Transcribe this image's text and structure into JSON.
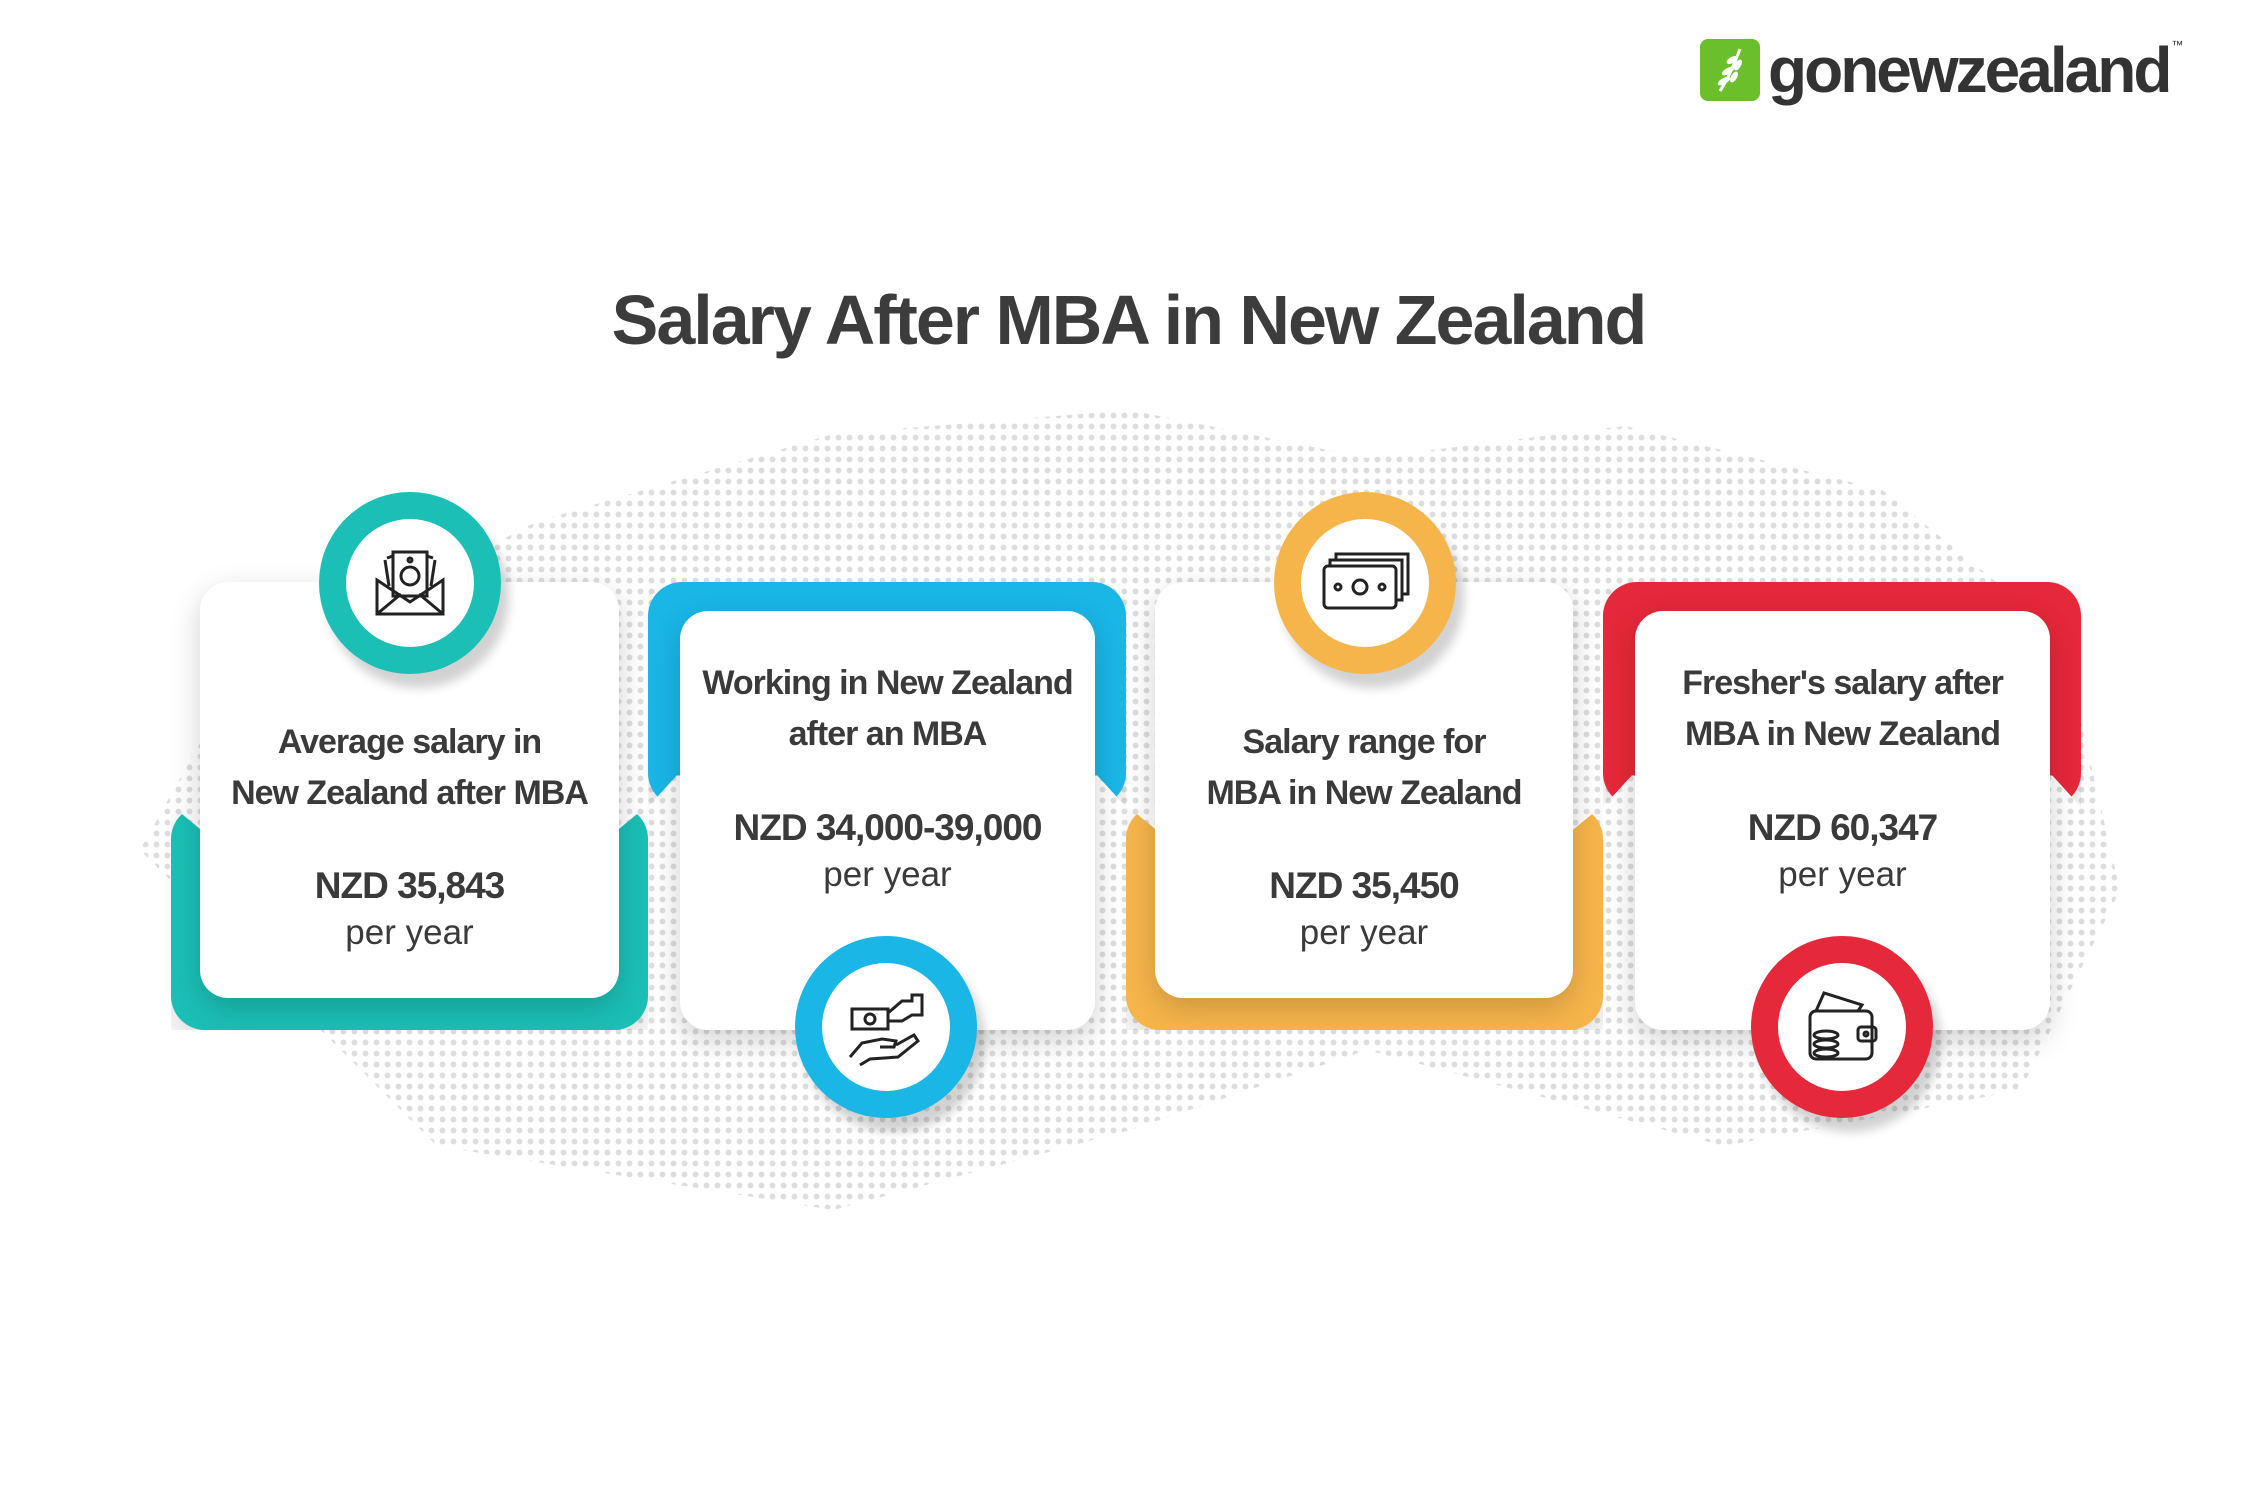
{
  "brand": {
    "name": "gonewzealand",
    "trademark": "™",
    "color": "#6bbf2a"
  },
  "title": "Salary After MBA in New Zealand",
  "cards": [
    {
      "heading_line1": "Average salary in",
      "heading_line2": "New Zealand after MBA",
      "value": "NZD 35,843",
      "period": "per year",
      "color": "#1bbfb5",
      "icon": "money-envelope-icon"
    },
    {
      "heading_line1": "Working in New Zealand",
      "heading_line2": "after an MBA",
      "value": "NZD 34,000-39,000",
      "period": "per year",
      "color": "#19b6e6",
      "icon": "hand-giving-money-icon"
    },
    {
      "heading_line1": "Salary range for",
      "heading_line2": "MBA in New Zealand",
      "value": "NZD 35,450",
      "period": "per year",
      "color": "#f6b54b",
      "icon": "banknotes-icon"
    },
    {
      "heading_line1": "Fresher's salary after",
      "heading_line2": "MBA in New Zealand",
      "value": "NZD 60,347",
      "period": "per year",
      "color": "#e5283a",
      "icon": "wallet-coins-icon"
    }
  ]
}
